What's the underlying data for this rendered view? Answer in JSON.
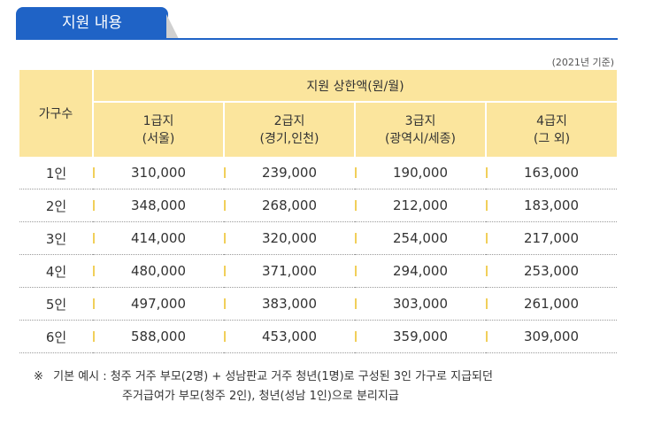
{
  "section_tab": "지원 내용",
  "basis_note": "(2021년 기준)",
  "table": {
    "family_header": "가구수",
    "limit_header": "지원 상한액(원/월)",
    "grades": [
      {
        "name": "1급지",
        "region": "(서울)"
      },
      {
        "name": "2급지",
        "region": "(경기,인천)"
      },
      {
        "name": "3급지",
        "region": "(광역시/세종)"
      },
      {
        "name": "4급지",
        "region": "(그 외)"
      }
    ],
    "rows": [
      {
        "family": "1인",
        "values": [
          "310,000",
          "239,000",
          "190,000",
          "163,000"
        ]
      },
      {
        "family": "2인",
        "values": [
          "348,000",
          "268,000",
          "212,000",
          "183,000"
        ]
      },
      {
        "family": "3인",
        "values": [
          "414,000",
          "320,000",
          "254,000",
          "217,000"
        ]
      },
      {
        "family": "4인",
        "values": [
          "480,000",
          "371,000",
          "294,000",
          "253,000"
        ]
      },
      {
        "family": "5인",
        "values": [
          "497,000",
          "383,000",
          "303,000",
          "261,000"
        ]
      },
      {
        "family": "6인",
        "values": [
          "588,000",
          "453,000",
          "359,000",
          "309,000"
        ]
      }
    ]
  },
  "example": {
    "mark": "※",
    "label": "기본 예시 :",
    "line1": "청주 거주 부모(2명) + 성남판교 거주 청년(1명)로 구성된 3인 가구로 지급되던",
    "line2": "주거급여가 부모(청주 2인), 청년(성남 1인)으로 분리지급"
  }
}
